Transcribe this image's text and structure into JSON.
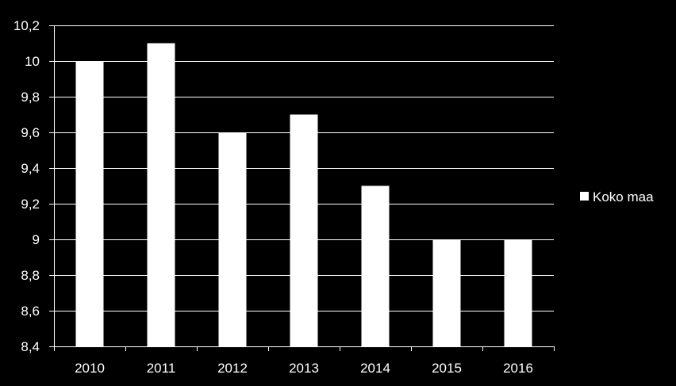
{
  "chart_data": {
    "type": "bar",
    "categories": [
      "2010",
      "2011",
      "2012",
      "2013",
      "2014",
      "2015",
      "2016"
    ],
    "series": [
      {
        "name": "Koko maa",
        "values": [
          10.0,
          10.1,
          9.6,
          9.7,
          9.3,
          9.0,
          9.0
        ],
        "color": "#ffffff"
      }
    ],
    "ylim": [
      8.4,
      10.2
    ],
    "yticks": [
      8.4,
      8.6,
      8.8,
      9.0,
      9.2,
      9.4,
      9.6,
      9.8,
      10.0,
      10.2
    ],
    "ytick_labels": [
      "8,4",
      "8,6",
      "8,8",
      "9",
      "9,2",
      "9,4",
      "9,6",
      "9,8",
      "10",
      "10,2"
    ],
    "grid": true,
    "legend": "right",
    "background": "#000000",
    "axis_color": "#ffffff"
  }
}
